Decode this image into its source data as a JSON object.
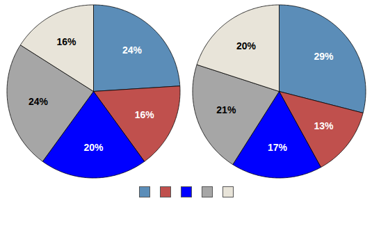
{
  "chart_data": [
    {
      "type": "pie",
      "values": [
        24,
        16,
        20,
        24,
        16
      ],
      "value_labels": [
        "24%",
        "16%",
        "20%",
        "24%",
        "16%"
      ],
      "colors": [
        "#5b8db8",
        "#c0504d",
        "#0000ff",
        "#a6a6a6",
        "#e8e4d9"
      ],
      "data_labels": true,
      "legend": "bottom"
    },
    {
      "type": "pie",
      "values": [
        29,
        13,
        17,
        21,
        20
      ],
      "value_labels": [
        "29%",
        "13%",
        "17%",
        "21%",
        "20%"
      ],
      "colors": [
        "#5b8db8",
        "#c0504d",
        "#0000ff",
        "#a6a6a6",
        "#e8e4d9"
      ],
      "data_labels": true,
      "legend": "bottom"
    }
  ]
}
